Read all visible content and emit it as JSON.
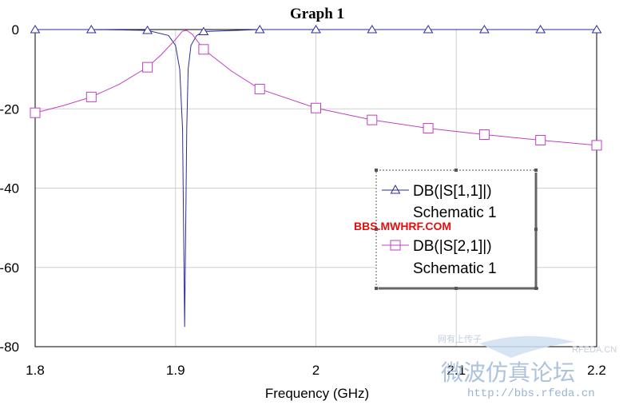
{
  "chart_data": {
    "type": "line",
    "title": "Graph 1",
    "xlabel": "Frequency (GHz)",
    "ylabel": "",
    "xlim": [
      1.8,
      2.2
    ],
    "ylim": [
      -80,
      0
    ],
    "xticks": [
      1.8,
      1.9,
      2.0,
      2.1,
      2.2
    ],
    "xtick_labels": [
      "1.8",
      "1.9",
      "2",
      "2.1",
      "2.2"
    ],
    "yticks": [
      0,
      -20,
      -40,
      -60,
      -80
    ],
    "ytick_labels": [
      "0",
      "-20",
      "-40",
      "-60",
      "-80"
    ],
    "grid": true,
    "legend_position": "right",
    "series": [
      {
        "name": "DB(|S[1,1]|)",
        "subname": "Schematic 1",
        "color": "#2b2b9e",
        "marker": "triangle",
        "x": [
          1.8,
          1.84,
          1.88,
          1.895,
          1.9,
          1.903,
          1.905,
          1.9065,
          1.908,
          1.909,
          1.911,
          1.915,
          1.92,
          1.96,
          2.0,
          2.04,
          2.08,
          2.12,
          2.16,
          2.2
        ],
        "y": [
          0,
          0,
          -0.2,
          -1.5,
          -4,
          -10,
          -25,
          -75,
          -25,
          -10,
          -4,
          -1.5,
          -0.5,
          0,
          0,
          0,
          0,
          0,
          0,
          0
        ],
        "marker_x": [
          1.8,
          1.84,
          1.88,
          1.92,
          1.96,
          2.0,
          2.04,
          2.08,
          2.12,
          2.16,
          2.2
        ]
      },
      {
        "name": "DB(|S[2,1]|)",
        "subname": "Schematic 1",
        "color": "#c040c0",
        "marker": "square",
        "x": [
          1.8,
          1.82,
          1.84,
          1.86,
          1.88,
          1.89,
          1.9,
          1.905,
          1.908,
          1.912,
          1.92,
          1.94,
          1.96,
          2.0,
          2.04,
          2.08,
          2.12,
          2.16,
          2.2
        ],
        "y": [
          -21,
          -19.2,
          -17,
          -13.8,
          -9.5,
          -6.3,
          -2.5,
          -0.4,
          -0.2,
          -1.2,
          -5,
          -10.5,
          -15,
          -19.8,
          -22.8,
          -24.9,
          -26.5,
          -27.9,
          -29.2
        ],
        "marker_x": [
          1.8,
          1.84,
          1.88,
          1.92,
          1.96,
          2.0,
          2.04,
          2.08,
          2.12,
          2.16,
          2.2
        ]
      }
    ]
  },
  "watermarks": {
    "red": "BBS.MWHRF.COM",
    "url": "http://bbs.rfeda.cn",
    "chinese": "微波仿真论坛",
    "logo": "RFEDA.CN",
    "small": "网有上传子"
  }
}
